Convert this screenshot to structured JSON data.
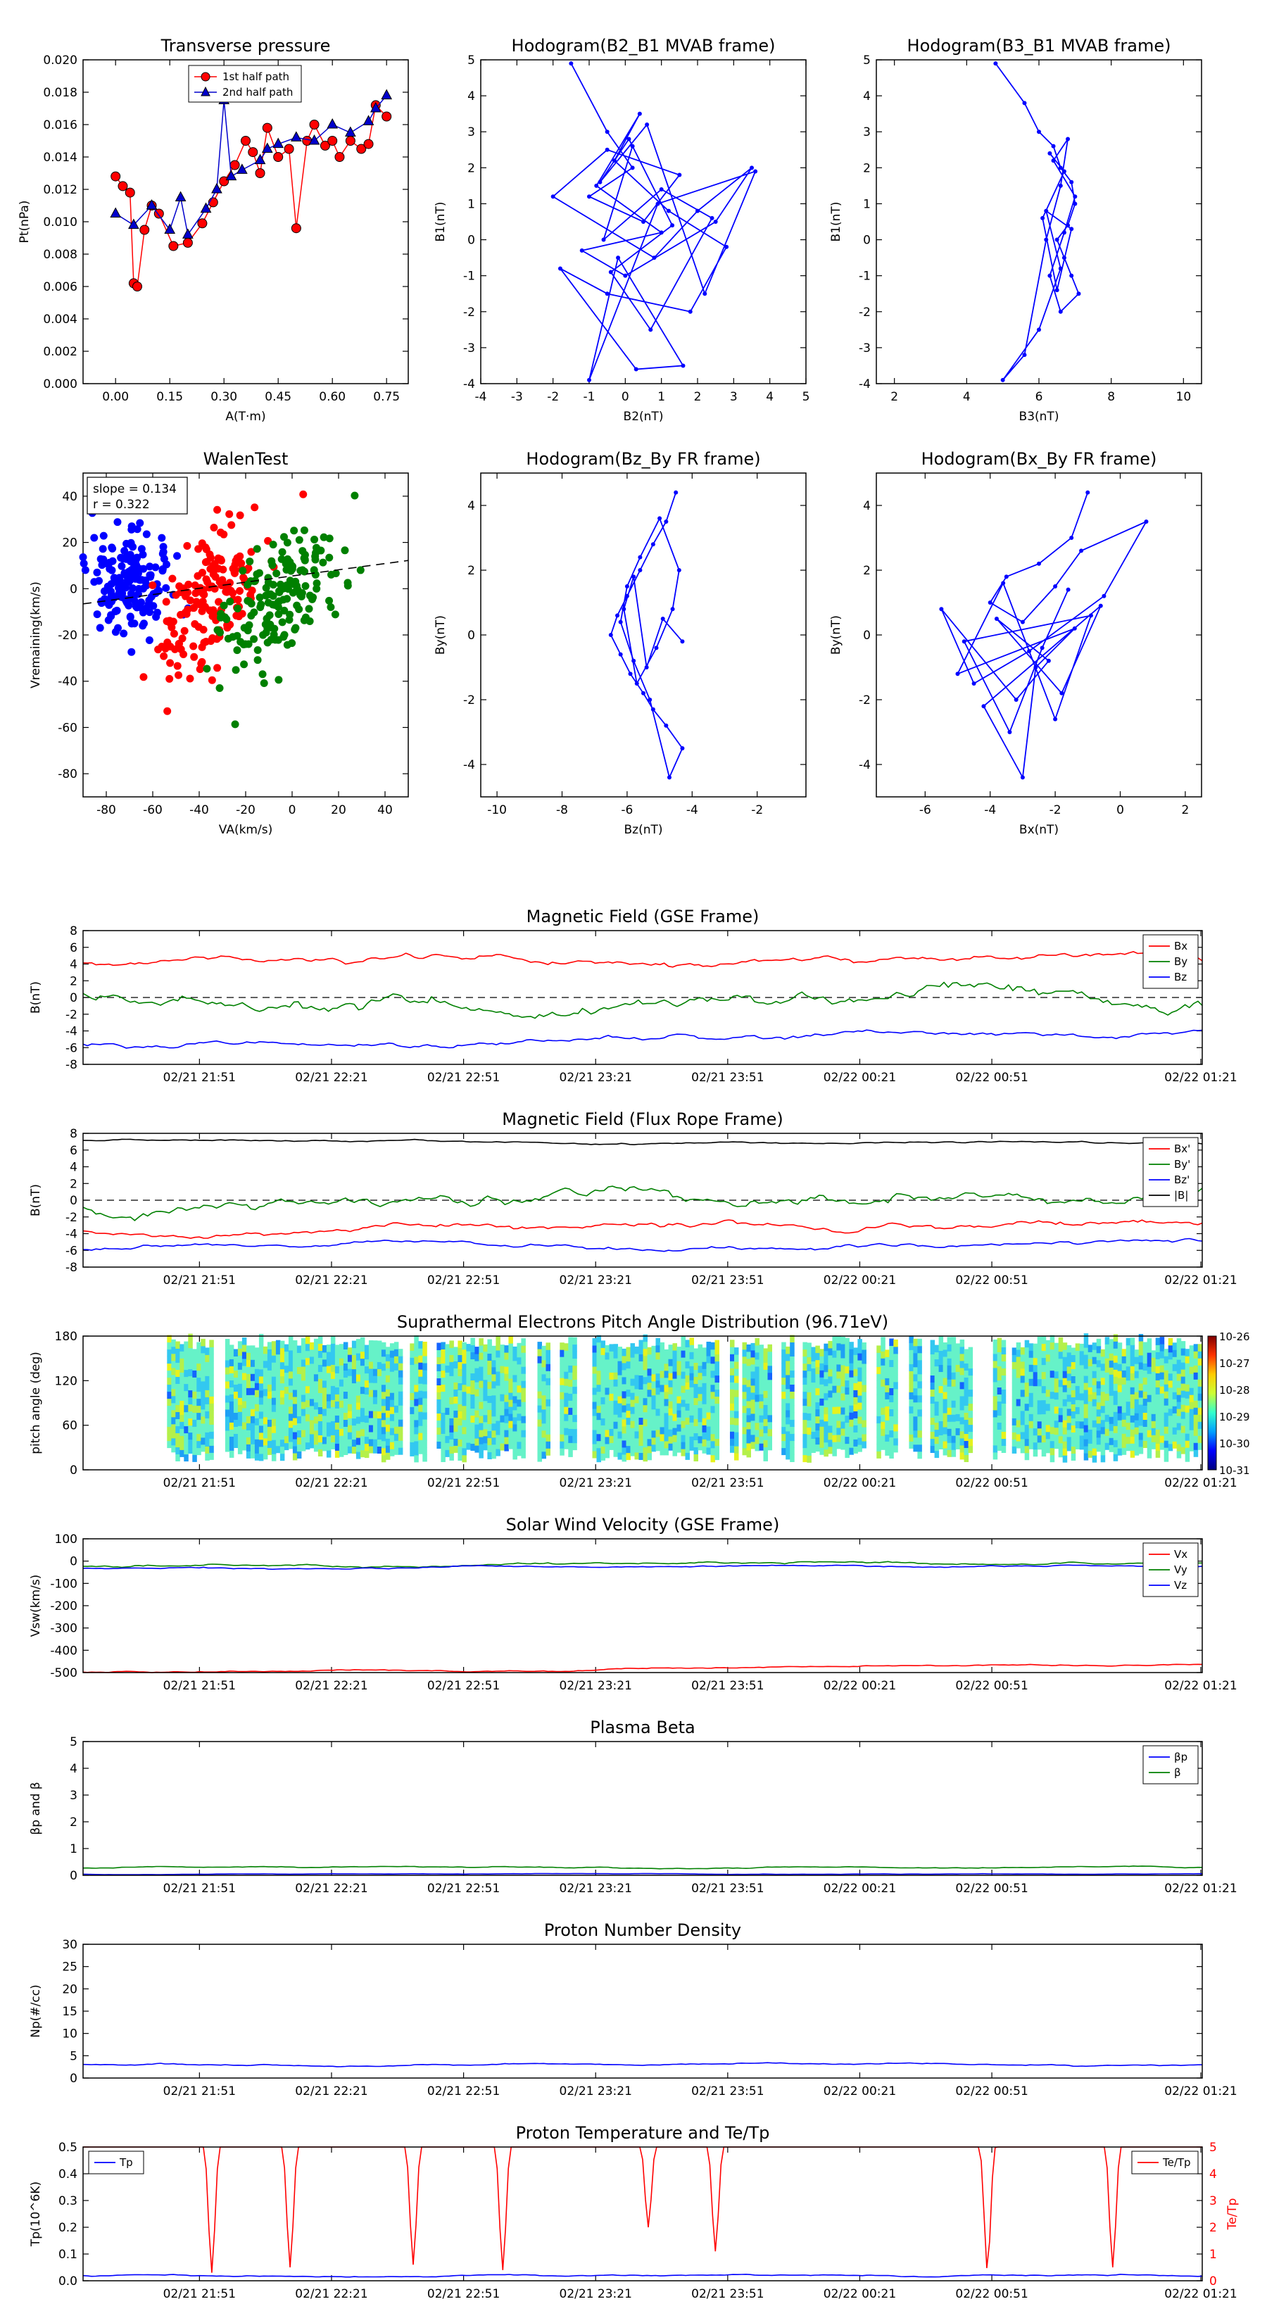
{
  "figure": {
    "background": "#ffffff"
  },
  "chart_data": [
    {
      "id": "transverse",
      "type": "scatter",
      "title": "Transverse pressure",
      "xlabel": "A(T·m)",
      "ylabel": "Pt(nPa)",
      "xlim": [
        -0.09,
        0.81
      ],
      "ylim": [
        0,
        0.02
      ],
      "xticks": [
        0,
        0.15,
        0.3,
        0.45,
        0.6,
        0.75
      ],
      "xticklabels": [
        "0.00",
        "0.15",
        "0.30",
        "0.45",
        "0.60",
        "0.75"
      ],
      "yticks": [
        0,
        0.002,
        0.004,
        0.006,
        0.008,
        0.01,
        0.012,
        0.014,
        0.016,
        0.018,
        0.02
      ],
      "yticklabels": [
        "0.000",
        "0.002",
        "0.004",
        "0.006",
        "0.008",
        "0.010",
        "0.012",
        "0.014",
        "0.016",
        "0.018",
        "0.020"
      ],
      "legend": "top-center",
      "series": [
        {
          "name": "1st half path",
          "color": "#ff0000",
          "marker": "circle",
          "x": [
            0.0,
            0.02,
            0.04,
            0.05,
            0.06,
            0.08,
            0.1,
            0.12,
            0.16,
            0.2,
            0.24,
            0.27,
            0.3,
            0.33,
            0.36,
            0.38,
            0.4,
            0.42,
            0.45,
            0.48,
            0.5,
            0.53,
            0.55,
            0.58,
            0.6,
            0.62,
            0.65,
            0.68,
            0.7,
            0.72,
            0.75
          ],
          "y": [
            0.0128,
            0.0122,
            0.0118,
            0.0062,
            0.006,
            0.0095,
            0.011,
            0.0105,
            0.0085,
            0.0087,
            0.0099,
            0.0112,
            0.0125,
            0.0135,
            0.015,
            0.0143,
            0.013,
            0.0158,
            0.014,
            0.0145,
            0.0096,
            0.015,
            0.016,
            0.0147,
            0.015,
            0.014,
            0.015,
            0.0145,
            0.0148,
            0.0172,
            0.0165
          ]
        },
        {
          "name": "2nd half path",
          "color": "#0000cc",
          "marker": "triangle",
          "x": [
            0.0,
            0.05,
            0.1,
            0.15,
            0.18,
            0.2,
            0.25,
            0.28,
            0.3,
            0.32,
            0.35,
            0.4,
            0.42,
            0.45,
            0.5,
            0.55,
            0.6,
            0.65,
            0.7,
            0.72,
            0.75
          ],
          "y": [
            0.0105,
            0.0098,
            0.011,
            0.0095,
            0.0115,
            0.0092,
            0.0108,
            0.012,
            0.0175,
            0.0128,
            0.0132,
            0.0138,
            0.0145,
            0.0148,
            0.0152,
            0.015,
            0.016,
            0.0155,
            0.0162,
            0.017,
            0.0178
          ]
        }
      ]
    },
    {
      "id": "hodo-b2b1",
      "type": "line",
      "title": "Hodogram(B2_B1 MVAB frame)",
      "xlabel": "B2(nT)",
      "ylabel": "B1(nT)",
      "xlim": [
        -4,
        5
      ],
      "ylim": [
        -4,
        5
      ],
      "xticks": [
        -4,
        -3,
        -2,
        -1,
        0,
        1,
        2,
        3,
        4,
        5
      ],
      "yticks": [
        -4,
        -3,
        -2,
        -1,
        0,
        1,
        2,
        3,
        4,
        5
      ],
      "series": [
        {
          "color": "#0000ff",
          "x": [
            -1.5,
            -0.5,
            0.2,
            -1.0,
            0.5,
            1.5,
            -0.5,
            -2.0,
            0.8,
            2.0,
            3.5,
            2.5,
            0.0,
            -1.2,
            1.0,
            -0.8,
            0.4,
            -0.3,
            1.2,
            2.8,
            1.8,
            -0.5,
            -1.8,
            0.3,
            1.6,
            -0.2,
            -1.0,
            0.9,
            3.6,
            2.2,
            0.6,
            -0.7,
            0.1,
            1.3,
            -0.4,
            0.7,
            2.4,
            1.0,
            -0.6,
            0.2
          ],
          "y": [
            4.9,
            3.0,
            2.0,
            1.2,
            0.5,
            1.8,
            2.5,
            1.2,
            -0.5,
            0.8,
            2.0,
            0.5,
            -1.0,
            -0.3,
            0.2,
            1.5,
            3.5,
            2.2,
            0.8,
            -0.2,
            -2.0,
            -1.5,
            -0.8,
            -3.6,
            -3.5,
            -0.5,
            -3.9,
            1.0,
            1.9,
            -1.5,
            3.2,
            1.6,
            2.8,
            0.4,
            -0.9,
            -2.5,
            0.6,
            1.4,
            0.0,
            2.6
          ]
        }
      ]
    },
    {
      "id": "hodo-b3b1",
      "type": "line",
      "title": "Hodogram(B3_B1 MVAB frame)",
      "xlabel": "B3(nT)",
      "ylabel": "B1(nT)",
      "xlim": [
        1.5,
        10.5
      ],
      "ylim": [
        -4,
        5
      ],
      "xticks": [
        2,
        4,
        6,
        8,
        10
      ],
      "yticks": [
        -4,
        -3,
        -2,
        -1,
        0,
        1,
        2,
        3,
        4,
        5
      ],
      "series": [
        {
          "color": "#0000ff",
          "x": [
            4.8,
            5.6,
            6.0,
            6.4,
            6.6,
            6.9,
            7.0,
            6.8,
            6.5,
            6.7,
            6.9,
            7.1,
            6.6,
            6.3,
            6.7,
            7.0,
            6.4,
            6.8,
            6.6,
            6.2,
            5.6,
            5.0,
            6.0,
            6.6,
            6.2,
            6.9,
            6.5,
            6.1,
            6.7,
            6.3
          ],
          "y": [
            4.9,
            3.8,
            3.0,
            2.6,
            2.0,
            1.6,
            1.0,
            0.4,
            0.0,
            -0.5,
            -1.0,
            -1.5,
            -2.0,
            -1.0,
            0.2,
            1.2,
            2.2,
            2.8,
            1.5,
            0.0,
            -3.2,
            -3.9,
            -2.5,
            -0.8,
            0.8,
            0.3,
            -1.4,
            0.6,
            1.9,
            2.4
          ]
        }
      ]
    },
    {
      "id": "walen",
      "type": "scatter",
      "title": "WalenTest",
      "xlabel": "VA(km/s)",
      "ylabel": "Vremaining(km/s)",
      "xlim": [
        -90,
        50
      ],
      "ylim": [
        -90,
        50
      ],
      "xticks": [
        -80,
        -60,
        -40,
        -20,
        0,
        20,
        40
      ],
      "yticks": [
        -80,
        -60,
        -40,
        -20,
        0,
        20,
        40
      ],
      "annotation": [
        "slope = 0.134",
        "r = 0.322"
      ],
      "fit": {
        "slope": 0.134,
        "intercept": 5.5
      },
      "series": [
        {
          "color": "#0000ff",
          "center": [
            -70,
            2
          ],
          "spread": [
            9,
            10
          ],
          "count": 170
        },
        {
          "color": "#ff0000",
          "center": [
            -35,
            -4
          ],
          "spread": [
            12,
            14
          ],
          "count": 170
        },
        {
          "color": "#008000",
          "center": [
            -5,
            -4
          ],
          "spread": [
            13,
            13
          ],
          "count": 170
        }
      ]
    },
    {
      "id": "hodo-bzby",
      "type": "line",
      "title": "Hodogram(Bz_By FR frame)",
      "xlabel": "Bz(nT)",
      "ylabel": "By(nT)",
      "xlim": [
        -10.5,
        -0.5
      ],
      "ylim": [
        -5,
        5
      ],
      "xticks": [
        -10,
        -8,
        -6,
        -4,
        -2
      ],
      "yticks": [
        -4,
        -2,
        0,
        2,
        4
      ],
      "series": [
        {
          "color": "#0000ff",
          "x": [
            -4.5,
            -4.8,
            -5.2,
            -5.6,
            -6.0,
            -6.3,
            -6.5,
            -6.2,
            -5.9,
            -5.5,
            -5.2,
            -4.8,
            -4.3,
            -4.7,
            -5.3,
            -5.8,
            -6.2,
            -6.0,
            -5.6,
            -5.0,
            -4.4,
            -4.6,
            -5.1,
            -5.7,
            -6.1,
            -5.8,
            -5.4,
            -4.9,
            -4.3
          ],
          "y": [
            4.4,
            3.5,
            2.8,
            2.0,
            1.2,
            0.6,
            0.0,
            -0.6,
            -1.2,
            -1.8,
            -2.3,
            -2.8,
            -3.5,
            -4.4,
            -2.0,
            -0.8,
            0.4,
            1.5,
            2.4,
            3.6,
            2.0,
            0.8,
            -0.4,
            -1.5,
            0.8,
            1.8,
            -1.0,
            0.5,
            -0.2
          ]
        }
      ]
    },
    {
      "id": "hodo-bxby",
      "type": "line",
      "title": "Hodogram(Bx_By FR frame)",
      "xlabel": "Bx(nT)",
      "ylabel": "By(nT)",
      "xlim": [
        -7.5,
        2.5
      ],
      "ylim": [
        -5,
        5
      ],
      "xticks": [
        -6,
        -4,
        -2,
        0,
        2
      ],
      "yticks": [
        -4,
        -2,
        0,
        2,
        4
      ],
      "series": [
        {
          "color": "#0000ff",
          "x": [
            -1.0,
            -1.5,
            -2.5,
            -3.5,
            -4.0,
            -3.0,
            -2.0,
            -1.2,
            0.8,
            -0.5,
            -2.8,
            -4.5,
            -5.5,
            -3.2,
            -2.2,
            -3.8,
            -1.8,
            -0.6,
            -4.2,
            -3.0,
            -2.6,
            -1.4,
            -5.0,
            -3.6,
            -2.0,
            -0.9,
            -4.8,
            -3.4,
            -2.4,
            -1.6
          ],
          "y": [
            4.4,
            3.0,
            2.2,
            1.8,
            1.0,
            0.4,
            1.5,
            2.6,
            3.5,
            1.2,
            -0.5,
            -1.5,
            0.8,
            -2.0,
            -0.8,
            0.5,
            -1.8,
            0.9,
            -2.2,
            -4.4,
            -1.0,
            0.2,
            -1.2,
            1.6,
            -2.6,
            0.6,
            -0.2,
            -3.0,
            -0.4,
            1.4
          ]
        }
      ]
    },
    {
      "id": "mag-gse",
      "type": "line",
      "title": "Magnetic Field (GSE Frame)",
      "ylabel": "B(nT)",
      "ylim": [
        -8,
        8
      ],
      "yticks": [
        -8,
        -6,
        -4,
        -2,
        0,
        2,
        4,
        6,
        8
      ],
      "xtick_labels": [
        "02/21 21:51",
        "02/21 22:21",
        "02/21 22:51",
        "02/21 23:21",
        "02/21 23:51",
        "02/22 00:21",
        "02/22 00:51",
        "02/22 01:21"
      ],
      "zero_line": true,
      "legend": "top-right",
      "series": [
        {
          "name": "Bx",
          "color": "#ff0000",
          "base": 4.3,
          "amp": 0.9,
          "trend": 0.8
        },
        {
          "name": "By",
          "color": "#008000",
          "base": -0.5,
          "amp": 1.8,
          "trend": 0.5
        },
        {
          "name": "Bz",
          "color": "#0000ff",
          "base": -5.4,
          "amp": 0.7,
          "trend": 1.5
        }
      ]
    },
    {
      "id": "mag-fr",
      "type": "line",
      "title": "Magnetic Field (Flux Rope Frame)",
      "ylabel": "B(nT)",
      "ylim": [
        -8,
        8
      ],
      "yticks": [
        -8,
        -6,
        -4,
        -2,
        0,
        2,
        4,
        6,
        8
      ],
      "xtick_labels": [
        "02/21 21:51",
        "02/21 22:21",
        "02/21 22:51",
        "02/21 23:21",
        "02/21 23:51",
        "02/22 00:21",
        "02/22 00:51",
        "02/22 01:21"
      ],
      "zero_line": true,
      "legend": "top-right",
      "series": [
        {
          "name": "Bx'",
          "color": "#ff0000",
          "base": -3.5,
          "amp": 0.9,
          "trend": 1.2
        },
        {
          "name": "By'",
          "color": "#008000",
          "base": 0.0,
          "amp": 1.6,
          "trend": 0.3
        },
        {
          "name": "Bz'",
          "color": "#0000ff",
          "base": -5.6,
          "amp": 0.6,
          "trend": 0.4
        },
        {
          "name": "|B|",
          "color": "#000000",
          "base": 7.0,
          "amp": 0.25,
          "trend": -0.3
        }
      ]
    },
    {
      "id": "pad",
      "type": "heatmap",
      "title": "Suprathermal Electrons Pitch Angle Distribution (96.71eV)",
      "ylabel": "pitch angle (deg)",
      "ylim": [
        0,
        180
      ],
      "yticks": [
        0,
        60,
        120,
        180
      ],
      "xtick_labels": [
        "02/21 21:51",
        "02/21 22:21",
        "02/21 22:51",
        "02/21 23:21",
        "02/21 23:51",
        "02/22 00:21",
        "02/22 00:51",
        "02/22 01:21"
      ],
      "data_segments": [
        [
          0.075,
          0.115
        ],
        [
          0.127,
          0.283
        ],
        [
          0.292,
          0.305
        ],
        [
          0.316,
          0.393
        ],
        [
          0.406,
          0.415
        ],
        [
          0.426,
          0.441
        ],
        [
          0.455,
          0.568
        ],
        [
          0.578,
          0.584
        ],
        [
          0.589,
          0.613
        ],
        [
          0.624,
          0.633
        ],
        [
          0.643,
          0.699
        ],
        [
          0.709,
          0.727
        ],
        [
          0.738,
          0.747
        ],
        [
          0.757,
          0.792
        ],
        [
          0.813,
          0.822
        ],
        [
          0.83,
          0.997
        ]
      ],
      "colorbar_ticks": [
        "10-26",
        "10-27",
        "10-28",
        "10-29",
        "10-30",
        "10-31"
      ],
      "colorbar_colors": [
        "#00007f",
        "#0000ff",
        "#00a0ff",
        "#33ffcc",
        "#ccff33",
        "#ffcc00",
        "#ff3300",
        "#7f0000"
      ]
    },
    {
      "id": "vsw",
      "type": "line",
      "title": "Solar Wind Velocity (GSE Frame)",
      "ylabel": "Vsw(km/s)",
      "ylim": [
        -500,
        100
      ],
      "yticks": [
        -500,
        -400,
        -300,
        -200,
        -100,
        0,
        100
      ],
      "xtick_labels": [
        "02/21 21:51",
        "02/21 22:21",
        "02/21 22:51",
        "02/21 23:21",
        "02/21 23:51",
        "02/22 00:21",
        "02/22 00:51",
        "02/22 01:21"
      ],
      "legend": "top-right",
      "series": [
        {
          "name": "Vx",
          "color": "#ff0000",
          "base": -495,
          "amp": 8,
          "trend": 40
        },
        {
          "name": "Vy",
          "color": "#008000",
          "base": -20,
          "amp": 12,
          "trend": 20
        },
        {
          "name": "Vz",
          "color": "#0000ff",
          "base": -30,
          "amp": 8,
          "trend": 15
        }
      ]
    },
    {
      "id": "beta",
      "type": "line",
      "title": "Plasma Beta",
      "ylabel": "βp and β",
      "ylim": [
        0,
        5
      ],
      "yticks": [
        0,
        1,
        2,
        3,
        4,
        5
      ],
      "xtick_labels": [
        "02/21 21:51",
        "02/21 22:21",
        "02/21 22:51",
        "02/21 23:21",
        "02/21 23:51",
        "02/22 00:21",
        "02/22 00:51",
        "02/22 01:21"
      ],
      "legend": "top-right",
      "series": [
        {
          "name": "βp",
          "color": "#0000ff",
          "base": 0.05,
          "amp": 0.02,
          "trend": 0
        },
        {
          "name": "β",
          "color": "#008000",
          "base": 0.3,
          "amp": 0.05,
          "trend": 0
        }
      ]
    },
    {
      "id": "np",
      "type": "line",
      "title": "Proton Number Density",
      "ylabel": "Np(#/cc)",
      "ylim": [
        0,
        30
      ],
      "yticks": [
        0,
        5,
        10,
        15,
        20,
        25,
        30
      ],
      "xtick_labels": [
        "02/21 21:51",
        "02/21 22:21",
        "02/21 22:51",
        "02/21 23:21",
        "02/21 23:51",
        "02/22 00:21",
        "02/22 00:51",
        "02/22 01:21"
      ],
      "series": [
        {
          "color": "#0000ff",
          "base": 3.0,
          "amp": 0.4,
          "trend": 0
        }
      ]
    },
    {
      "id": "tp",
      "type": "line",
      "title": "Proton Temperature and Te/Tp",
      "ylabel": "Tp(10^6K)",
      "ylabel_right": "Te/Tp",
      "ylim": [
        0,
        0.5
      ],
      "ylim_right": [
        0,
        5
      ],
      "yticks": [
        0,
        0.1,
        0.2,
        0.3,
        0.4,
        0.5
      ],
      "yticklabels": [
        "0.0",
        "0.1",
        "0.2",
        "0.3",
        "0.4",
        "0.5"
      ],
      "yticks_right": [
        0,
        1,
        2,
        3,
        4,
        5
      ],
      "xtick_labels": [
        "02/21 21:51",
        "02/21 22:21",
        "02/21 22:51",
        "02/21 23:21",
        "02/21 23:51",
        "02/22 00:21",
        "02/22 00:51",
        "02/22 01:21"
      ],
      "series": [
        {
          "name": "Tp",
          "color": "#0000ff",
          "base": 0.02,
          "amp": 0.006,
          "trend": 0,
          "legend": "top-left"
        },
        {
          "name": "Te/Tp",
          "color": "#ff0000",
          "axis": "right",
          "base": 5.0,
          "dips": [
            [
              0.115,
              0.3
            ],
            [
              0.185,
              0.5
            ],
            [
              0.295,
              0.6
            ],
            [
              0.375,
              0.4
            ],
            [
              0.505,
              2.0
            ],
            [
              0.565,
              1.1
            ],
            [
              0.808,
              0.4
            ],
            [
              0.92,
              0.5
            ]
          ],
          "legend": "top-right"
        }
      ]
    }
  ]
}
